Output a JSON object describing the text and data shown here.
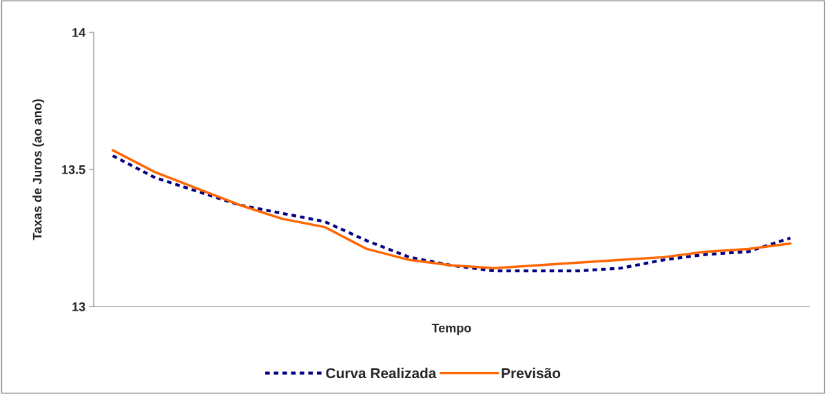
{
  "chart_data": {
    "type": "line",
    "xlabel": "Tempo",
    "ylabel": "Taxas de Juros (ao ano)",
    "categories": [
      null,
      null,
      null,
      null,
      null,
      null,
      null,
      null,
      null,
      null,
      null,
      null,
      null,
      null,
      null,
      null,
      null
    ],
    "series": [
      {
        "name": "Curva Realizada",
        "color": "#000080",
        "line_style": "dashed",
        "values": [
          13.55,
          13.47,
          13.42,
          13.37,
          13.34,
          13.31,
          13.24,
          13.18,
          13.15,
          13.13,
          13.13,
          13.13,
          13.14,
          13.17,
          13.19,
          13.2,
          13.25
        ]
      },
      {
        "name": "Previsão",
        "color": "#ff6600",
        "line_style": "solid",
        "values": [
          13.57,
          13.49,
          13.43,
          13.37,
          13.32,
          13.29,
          13.21,
          13.17,
          13.15,
          13.14,
          13.15,
          13.16,
          13.17,
          13.18,
          13.2,
          13.21,
          13.23
        ]
      }
    ],
    "ylim": [
      13,
      14
    ],
    "yticks": [
      13,
      13.5,
      14
    ],
    "grid": false,
    "legend": "bottom",
    "marker": "none"
  }
}
